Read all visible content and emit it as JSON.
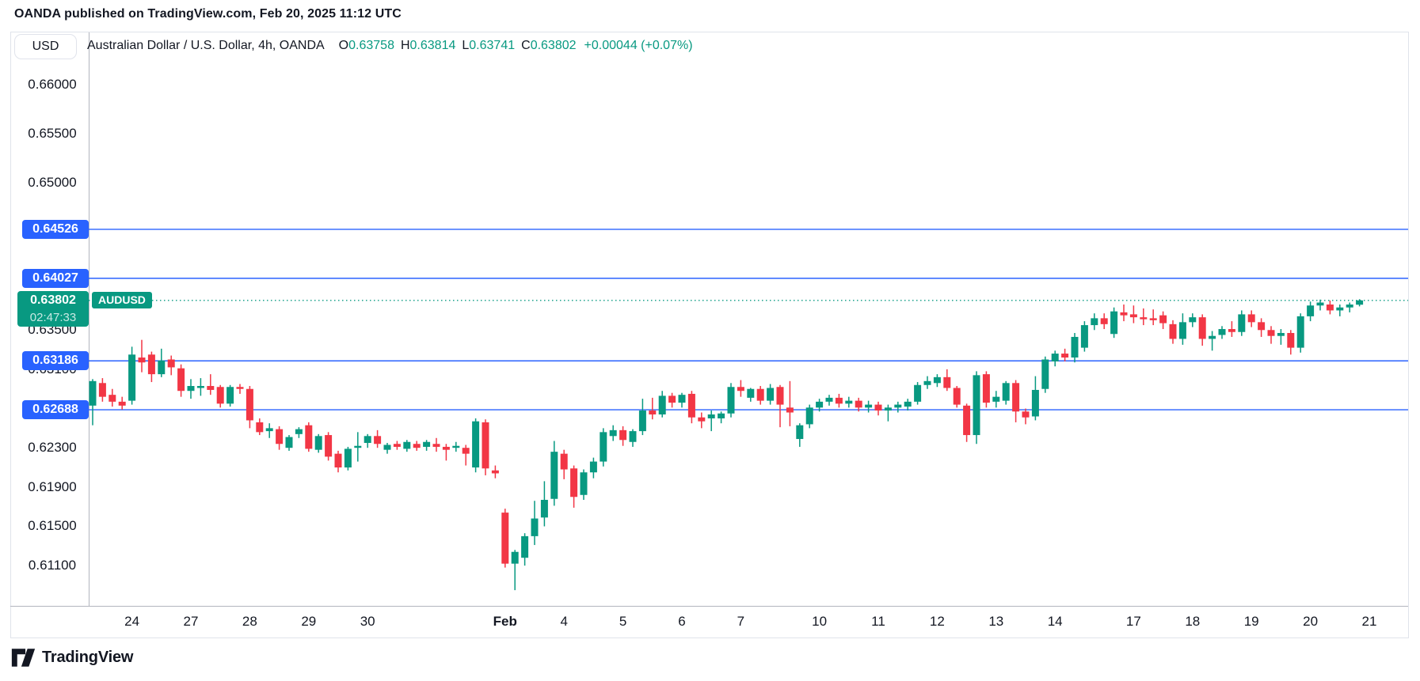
{
  "attribution": "OANDA published on TradingView.com, Feb 20, 2025 11:12 UTC",
  "currency_button": "USD",
  "legend": {
    "title": "Australian Dollar / U.S. Dollar, 4h, OANDA",
    "o_label": "O",
    "o_value": "0.63758",
    "h_label": "H",
    "h_value": "0.63814",
    "l_label": "L",
    "l_value": "0.63741",
    "c_label": "C",
    "c_value": "0.63802",
    "change": "+0.00044 (+0.07%)"
  },
  "logo_text": "TradingView",
  "colors": {
    "up": "#089981",
    "down": "#f23645",
    "level_line": "#2962ff",
    "badge_blue": "#2962ff",
    "badge_green": "#089981",
    "last_price_line": "#089981",
    "text": "#131722",
    "frame": "#e0e3eb",
    "axis_line": "#b2b5be"
  },
  "price_scale": {
    "ticks": [
      {
        "label": "0.66000",
        "price": 0.66
      },
      {
        "label": "0.65500",
        "price": 0.655
      },
      {
        "label": "0.65000",
        "price": 0.65
      },
      {
        "label": "0.63500",
        "price": 0.635
      },
      {
        "label": "0.63100",
        "price": 0.631
      },
      {
        "label": "0.62300",
        "price": 0.623
      },
      {
        "label": "0.61900",
        "price": 0.619
      },
      {
        "label": "0.61500",
        "price": 0.615
      },
      {
        "label": "0.61100",
        "price": 0.611
      }
    ],
    "level_badges": [
      {
        "label": "0.64526",
        "price": 0.64526
      },
      {
        "label": "0.64027",
        "price": 0.64027
      },
      {
        "label": "0.63186",
        "price": 0.63186
      },
      {
        "label": "0.62688",
        "price": 0.62688
      }
    ],
    "last_badge": {
      "price_label": "0.63802",
      "countdown": "02:47:33",
      "price": 0.63802
    },
    "symbol_tag": "AUDUSD"
  },
  "time_scale": {
    "labels": [
      {
        "text": "24",
        "slot": 4
      },
      {
        "text": "27",
        "slot": 10
      },
      {
        "text": "28",
        "slot": 16
      },
      {
        "text": "29",
        "slot": 22
      },
      {
        "text": "30",
        "slot": 28
      },
      {
        "text": "Feb",
        "slot": 42,
        "bold": true
      },
      {
        "text": "4",
        "slot": 48
      },
      {
        "text": "5",
        "slot": 54
      },
      {
        "text": "6",
        "slot": 60
      },
      {
        "text": "7",
        "slot": 66
      },
      {
        "text": "10",
        "slot": 74
      },
      {
        "text": "11",
        "slot": 80
      },
      {
        "text": "12",
        "slot": 86
      },
      {
        "text": "13",
        "slot": 92
      },
      {
        "text": "14",
        "slot": 98
      },
      {
        "text": "17",
        "slot": 106
      },
      {
        "text": "18",
        "slot": 112
      },
      {
        "text": "19",
        "slot": 118
      },
      {
        "text": "20",
        "slot": 124
      },
      {
        "text": "21",
        "slot": 130
      }
    ]
  },
  "chart_data": {
    "type": "candlestick",
    "symbol": "AUDUSD",
    "description": "Australian Dollar / U.S. Dollar",
    "timeframe": "4h",
    "exchange": "OANDA",
    "title": "Australian Dollar / U.S. Dollar, 4h, OANDA",
    "grid": false,
    "legend_position": "top-left",
    "current_candle": {
      "open": 0.63758,
      "high": 0.63814,
      "low": 0.63741,
      "close": 0.63802,
      "change_abs": "+0.00044",
      "change_pct": "+0.07%"
    },
    "last_price": 0.63802,
    "countdown": "02:47:33",
    "price_levels": [
      0.64526,
      0.64027,
      0.63186,
      0.62688
    ],
    "price_range": {
      "top": 0.6654,
      "bottom": 0.6069
    },
    "x_axis_dates": [
      "Jan 24",
      "Jan 27",
      "Jan 28",
      "Jan 29",
      "Jan 30",
      "Feb 3",
      "Feb 4",
      "Feb 5",
      "Feb 6",
      "Feb 7",
      "Feb 10",
      "Feb 11",
      "Feb 12",
      "Feb 13",
      "Feb 14",
      "Feb 17",
      "Feb 18",
      "Feb 19",
      "Feb 20",
      "Feb 21"
    ],
    "candles_format": [
      "open",
      "high",
      "low",
      "close"
    ],
    "candles": [
      [
        0.6273,
        0.63,
        0.6253,
        0.6298
      ],
      [
        0.6296,
        0.6301,
        0.6277,
        0.6282
      ],
      [
        0.6284,
        0.629,
        0.6272,
        0.6277
      ],
      [
        0.6277,
        0.6282,
        0.6269,
        0.6273
      ],
      [
        0.6278,
        0.6333,
        0.6274,
        0.6325
      ],
      [
        0.6322,
        0.634,
        0.6307,
        0.6317
      ],
      [
        0.6325,
        0.6328,
        0.6297,
        0.6305
      ],
      [
        0.6305,
        0.6331,
        0.6302,
        0.6319
      ],
      [
        0.632,
        0.6324,
        0.6304,
        0.6312
      ],
      [
        0.6311,
        0.6315,
        0.6282,
        0.6288
      ],
      [
        0.6288,
        0.63,
        0.628,
        0.6293
      ],
      [
        0.6291,
        0.6301,
        0.6283,
        0.6293
      ],
      [
        0.6293,
        0.6305,
        0.6284,
        0.6289
      ],
      [
        0.6292,
        0.6294,
        0.6271,
        0.6275
      ],
      [
        0.6275,
        0.6294,
        0.6272,
        0.6292
      ],
      [
        0.6292,
        0.6295,
        0.6285,
        0.629
      ],
      [
        0.629,
        0.6293,
        0.625,
        0.6258
      ],
      [
        0.6256,
        0.626,
        0.6243,
        0.6246
      ],
      [
        0.6247,
        0.6255,
        0.624,
        0.625
      ],
      [
        0.6249,
        0.6252,
        0.6228,
        0.6234
      ],
      [
        0.623,
        0.6243,
        0.6227,
        0.6241
      ],
      [
        0.6244,
        0.6251,
        0.624,
        0.6249
      ],
      [
        0.6253,
        0.6256,
        0.6226,
        0.6229
      ],
      [
        0.6228,
        0.6244,
        0.6225,
        0.6242
      ],
      [
        0.6243,
        0.6246,
        0.6217,
        0.6221
      ],
      [
        0.6224,
        0.6227,
        0.6205,
        0.621
      ],
      [
        0.621,
        0.6231,
        0.6207,
        0.6229
      ],
      [
        0.623,
        0.6246,
        0.6216,
        0.6232
      ],
      [
        0.6235,
        0.6244,
        0.623,
        0.6242
      ],
      [
        0.6242,
        0.6248,
        0.623,
        0.6234
      ],
      [
        0.6228,
        0.6235,
        0.6224,
        0.6233
      ],
      [
        0.6234,
        0.6237,
        0.6228,
        0.6231
      ],
      [
        0.6229,
        0.6238,
        0.6226,
        0.6236
      ],
      [
        0.6234,
        0.6237,
        0.6227,
        0.623
      ],
      [
        0.6231,
        0.6238,
        0.6227,
        0.6236
      ],
      [
        0.6234,
        0.624,
        0.6226,
        0.6231
      ],
      [
        0.6231,
        0.6234,
        0.6217,
        0.6228
      ],
      [
        0.623,
        0.6236,
        0.6226,
        0.6232
      ],
      [
        0.623,
        0.6233,
        0.6212,
        0.6224
      ],
      [
        0.621,
        0.626,
        0.6205,
        0.6257
      ],
      [
        0.6256,
        0.6259,
        0.6202,
        0.6209
      ],
      [
        0.6207,
        0.6212,
        0.6199,
        0.6204
      ],
      [
        0.6164,
        0.6168,
        0.6108,
        0.6112
      ],
      [
        0.6112,
        0.6126,
        0.6085,
        0.6124
      ],
      [
        0.6118,
        0.6143,
        0.611,
        0.614
      ],
      [
        0.614,
        0.6176,
        0.6131,
        0.6158
      ],
      [
        0.6159,
        0.6196,
        0.615,
        0.6177
      ],
      [
        0.6178,
        0.6237,
        0.6171,
        0.6226
      ],
      [
        0.6224,
        0.6228,
        0.6198,
        0.6208
      ],
      [
        0.6209,
        0.6212,
        0.6169,
        0.618
      ],
      [
        0.6182,
        0.6208,
        0.6177,
        0.6205
      ],
      [
        0.6205,
        0.622,
        0.6199,
        0.6216
      ],
      [
        0.6216,
        0.625,
        0.6211,
        0.6246
      ],
      [
        0.6242,
        0.6253,
        0.6237,
        0.6248
      ],
      [
        0.6248,
        0.6252,
        0.6232,
        0.6238
      ],
      [
        0.6236,
        0.6249,
        0.6231,
        0.6247
      ],
      [
        0.6247,
        0.628,
        0.6243,
        0.6268
      ],
      [
        0.6268,
        0.6281,
        0.6259,
        0.6264
      ],
      [
        0.6264,
        0.6288,
        0.6261,
        0.6283
      ],
      [
        0.6283,
        0.6286,
        0.6271,
        0.6276
      ],
      [
        0.6276,
        0.6286,
        0.6271,
        0.6284
      ],
      [
        0.6285,
        0.6288,
        0.6255,
        0.6261
      ],
      [
        0.6261,
        0.6266,
        0.625,
        0.6257
      ],
      [
        0.626,
        0.6268,
        0.6247,
        0.6264
      ],
      [
        0.626,
        0.6267,
        0.6255,
        0.6265
      ],
      [
        0.6265,
        0.6296,
        0.6261,
        0.6292
      ],
      [
        0.6292,
        0.6299,
        0.6282,
        0.6288
      ],
      [
        0.6281,
        0.6291,
        0.6277,
        0.629
      ],
      [
        0.629,
        0.6293,
        0.6274,
        0.6278
      ],
      [
        0.6278,
        0.6295,
        0.6274,
        0.6291
      ],
      [
        0.6292,
        0.6294,
        0.6251,
        0.6274
      ],
      [
        0.6271,
        0.6298,
        0.6252,
        0.6266
      ],
      [
        0.6239,
        0.6255,
        0.6231,
        0.6253
      ],
      [
        0.6254,
        0.6274,
        0.625,
        0.6271
      ],
      [
        0.6271,
        0.628,
        0.6267,
        0.6277
      ],
      [
        0.6277,
        0.6284,
        0.6273,
        0.6281
      ],
      [
        0.6281,
        0.6285,
        0.6271,
        0.6275
      ],
      [
        0.6275,
        0.6282,
        0.6271,
        0.6278
      ],
      [
        0.6278,
        0.6281,
        0.6267,
        0.6271
      ],
      [
        0.6271,
        0.6278,
        0.6266,
        0.6274
      ],
      [
        0.6274,
        0.6277,
        0.6263,
        0.6268
      ],
      [
        0.6268,
        0.6274,
        0.6257,
        0.6271
      ],
      [
        0.6271,
        0.6277,
        0.6266,
        0.6274
      ],
      [
        0.6272,
        0.628,
        0.6268,
        0.6277
      ],
      [
        0.6277,
        0.6297,
        0.6274,
        0.6294
      ],
      [
        0.6294,
        0.6303,
        0.629,
        0.6298
      ],
      [
        0.6296,
        0.6305,
        0.6292,
        0.6302
      ],
      [
        0.6302,
        0.631,
        0.6288,
        0.6291
      ],
      [
        0.6291,
        0.6293,
        0.6271,
        0.6274
      ],
      [
        0.6273,
        0.6275,
        0.6236,
        0.6243
      ],
      [
        0.6243,
        0.6308,
        0.6234,
        0.6304
      ],
      [
        0.6305,
        0.6308,
        0.6271,
        0.6276
      ],
      [
        0.6277,
        0.6288,
        0.6271,
        0.6282
      ],
      [
        0.6278,
        0.6298,
        0.6274,
        0.6296
      ],
      [
        0.6296,
        0.6299,
        0.6256,
        0.6267
      ],
      [
        0.6267,
        0.627,
        0.6254,
        0.6261
      ],
      [
        0.6262,
        0.6303,
        0.6258,
        0.6289
      ],
      [
        0.629,
        0.6323,
        0.6286,
        0.632
      ],
      [
        0.6318,
        0.6329,
        0.6313,
        0.6326
      ],
      [
        0.6326,
        0.6331,
        0.6318,
        0.6322
      ],
      [
        0.6322,
        0.6347,
        0.6317,
        0.6343
      ],
      [
        0.6332,
        0.6359,
        0.6328,
        0.6355
      ],
      [
        0.6355,
        0.6367,
        0.635,
        0.6362
      ],
      [
        0.6362,
        0.6367,
        0.6351,
        0.6356
      ],
      [
        0.6346,
        0.6373,
        0.6342,
        0.6369
      ],
      [
        0.6368,
        0.6376,
        0.6359,
        0.6365
      ],
      [
        0.6366,
        0.6375,
        0.6357,
        0.6363
      ],
      [
        0.6363,
        0.6372,
        0.6355,
        0.6361
      ],
      [
        0.6362,
        0.6371,
        0.6355,
        0.636
      ],
      [
        0.6365,
        0.6369,
        0.6351,
        0.6357
      ],
      [
        0.6356,
        0.636,
        0.6336,
        0.6341
      ],
      [
        0.6341,
        0.6367,
        0.6335,
        0.6358
      ],
      [
        0.6358,
        0.6367,
        0.6353,
        0.6363
      ],
      [
        0.6363,
        0.6366,
        0.6334,
        0.6341
      ],
      [
        0.6341,
        0.6349,
        0.6329,
        0.6344
      ],
      [
        0.6345,
        0.6354,
        0.6341,
        0.6351
      ],
      [
        0.6351,
        0.6359,
        0.6343,
        0.6348
      ],
      [
        0.6348,
        0.637,
        0.6344,
        0.6366
      ],
      [
        0.6366,
        0.637,
        0.6353,
        0.6358
      ],
      [
        0.6358,
        0.6362,
        0.6343,
        0.635
      ],
      [
        0.635,
        0.6354,
        0.6336,
        0.6344
      ],
      [
        0.6344,
        0.6351,
        0.6335,
        0.6347
      ],
      [
        0.6347,
        0.635,
        0.6325,
        0.6332
      ],
      [
        0.6332,
        0.6367,
        0.6327,
        0.6364
      ],
      [
        0.6364,
        0.6379,
        0.6359,
        0.6375
      ],
      [
        0.6375,
        0.6381,
        0.637,
        0.6378
      ],
      [
        0.6376,
        0.638,
        0.6366,
        0.637
      ],
      [
        0.637,
        0.6376,
        0.6364,
        0.6373
      ],
      [
        0.6373,
        0.6378,
        0.6368,
        0.6376
      ],
      [
        0.63758,
        0.63814,
        0.63741,
        0.63802
      ]
    ]
  }
}
